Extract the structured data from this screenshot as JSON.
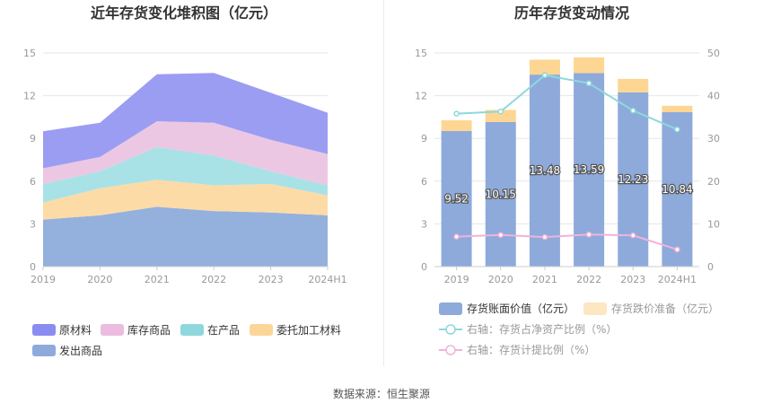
{
  "chart_data": [
    {
      "type": "area",
      "stacked": true,
      "title": "近年存货变化堆积图（亿元）",
      "categories": [
        "2019",
        "2020",
        "2021",
        "2022",
        "2023",
        "2024H1"
      ],
      "ylim": [
        0,
        15
      ],
      "yticks": [
        "0",
        "3",
        "6",
        "9",
        "12",
        "15"
      ],
      "grid": true,
      "legend_position": "bottom-left",
      "series": [
        {
          "name": "发出商品",
          "color": "#94b0dd",
          "values": [
            3.3,
            3.6,
            4.2,
            3.9,
            3.8,
            3.6
          ]
        },
        {
          "name": "委托加工材料",
          "color": "#fcdba7",
          "values": [
            1.2,
            1.9,
            1.9,
            1.8,
            2.0,
            1.4
          ]
        },
        {
          "name": "在产品",
          "color": "#a9e2e6",
          "values": [
            1.3,
            1.2,
            2.3,
            2.1,
            0.9,
            0.7
          ]
        },
        {
          "name": "库存商品",
          "color": "#ecc7e3",
          "values": [
            1.1,
            1.0,
            1.8,
            2.3,
            2.2,
            2.2
          ]
        },
        {
          "name": "原材料",
          "color": "#9b9df3",
          "values": [
            2.6,
            2.4,
            3.3,
            3.5,
            3.3,
            2.9
          ]
        }
      ],
      "legend": [
        {
          "name": "原材料",
          "color": "#8a8cf0"
        },
        {
          "name": "库存商品",
          "color": "#ebbce0"
        },
        {
          "name": "在产品",
          "color": "#8ed8dd"
        },
        {
          "name": "委托加工材料",
          "color": "#fcd698"
        },
        {
          "name": "发出商品",
          "color": "#8eaadb"
        }
      ]
    },
    {
      "type": "bar",
      "stacked": true,
      "title": "历年存货变动情况",
      "categories": [
        "2019",
        "2020",
        "2021",
        "2022",
        "2023",
        "2024H1"
      ],
      "ylim": [
        0,
        15
      ],
      "yticks": [
        "0",
        "3",
        "6",
        "9",
        "12",
        "15"
      ],
      "y2lim": [
        0,
        50
      ],
      "y2ticks": [
        "0",
        "10",
        "20",
        "30",
        "40",
        "50"
      ],
      "grid": true,
      "legend_position": "bottom",
      "series": [
        {
          "name": "存货账面价值（亿元）",
          "axis": "left",
          "color": "#8eaadb",
          "values": [
            9.52,
            10.15,
            13.48,
            13.59,
            12.23,
            10.84
          ],
          "labels": [
            "9.52",
            "10.15",
            "13.48",
            "13.59",
            "12.23",
            "10.84"
          ]
        },
        {
          "name": "存货跌价准备（亿元）",
          "axis": "left",
          "color": "#fdd693",
          "values": [
            0.75,
            0.85,
            1.05,
            1.1,
            0.95,
            0.45
          ]
        },
        {
          "name": "右轴：存货占净资产比例（%）",
          "axis": "right",
          "type": "line",
          "color": "#8ed8dd",
          "values": [
            35.8,
            36.3,
            44.8,
            42.9,
            36.5,
            32.1
          ]
        },
        {
          "name": "右轴：存货计提比例（%）",
          "axis": "right",
          "type": "line",
          "color": "#f0b3da",
          "values": [
            7.0,
            7.4,
            6.9,
            7.5,
            7.3,
            4.0
          ]
        }
      ]
    }
  ],
  "footer": {
    "source": "数据来源：恒生聚源"
  }
}
